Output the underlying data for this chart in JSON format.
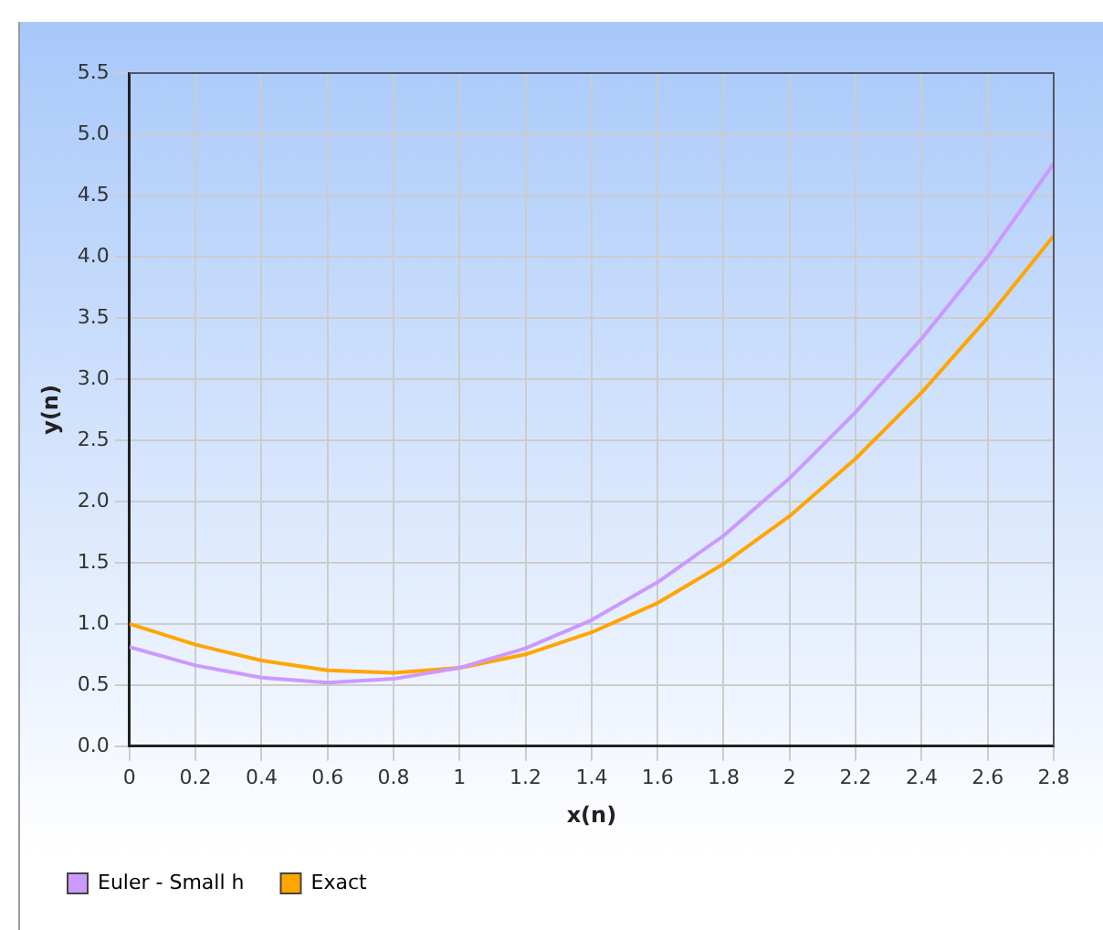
{
  "chart_data": {
    "type": "line",
    "xlabel": "x(n)",
    "ylabel": "y(n)",
    "x": [
      0,
      0.2,
      0.4,
      0.6,
      0.8,
      1,
      1.2,
      1.4,
      1.6,
      1.8,
      2,
      2.2,
      2.4,
      2.6,
      2.8
    ],
    "series": [
      {
        "name": "Euler - Small h",
        "color": "#cc99ff",
        "values": [
          0.81,
          0.66,
          0.56,
          0.52,
          0.55,
          0.64,
          0.8,
          1.03,
          1.34,
          1.72,
          2.19,
          2.73,
          3.33,
          4.0,
          4.76
        ]
      },
      {
        "name": "Exact",
        "color": "#ffa500",
        "values": [
          1.0,
          0.83,
          0.7,
          0.62,
          0.6,
          0.64,
          0.75,
          0.93,
          1.17,
          1.49,
          1.88,
          2.35,
          2.89,
          3.5,
          4.17
        ]
      }
    ],
    "xlim": [
      0,
      2.8
    ],
    "xticks": [
      0,
      0.2,
      0.4,
      0.6,
      0.8,
      1,
      1.2,
      1.4,
      1.6,
      1.8,
      2,
      2.2,
      2.4,
      2.6,
      2.8
    ],
    "ylim": [
      0,
      5.5
    ],
    "yticks": [
      {
        "value": 0,
        "label": "0.0"
      },
      0.5,
      {
        "value": 1,
        "label": "1.0"
      },
      1.5,
      {
        "value": 2,
        "label": "2.0"
      },
      2.5,
      {
        "value": 3,
        "label": "3.0"
      },
      3.5,
      {
        "value": 4,
        "label": "4.0"
      },
      4.5,
      {
        "value": 5,
        "label": "5.0"
      },
      5.5
    ],
    "grid": true,
    "legend": "bottom left",
    "marker": "none",
    "line_style": "solid"
  }
}
